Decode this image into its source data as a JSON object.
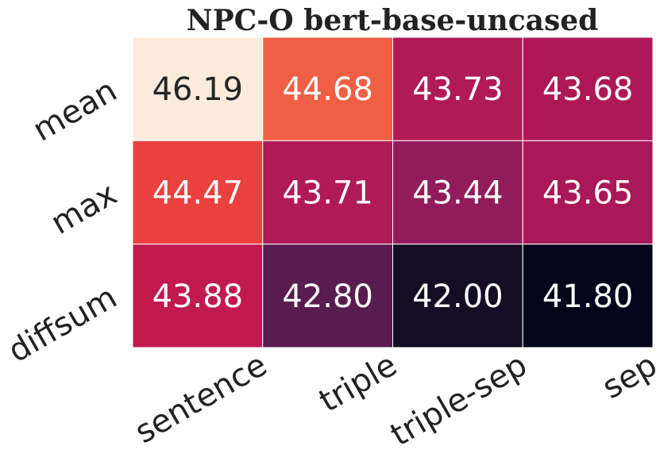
{
  "chart_data": {
    "type": "heatmap",
    "title": "NPC-O  bert-base-uncased",
    "x_categories": [
      "sentence",
      "triple",
      "triple-sep",
      "sep"
    ],
    "y_categories": [
      "mean",
      "max",
      "diffsum"
    ],
    "values": [
      [
        46.19,
        44.68,
        43.73,
        43.68
      ],
      [
        44.47,
        43.71,
        43.44,
        43.65
      ],
      [
        43.88,
        42.8,
        42.0,
        41.8
      ]
    ],
    "cell_labels": [
      [
        "46.19",
        "44.68",
        "43.73",
        "43.68"
      ],
      [
        "44.47",
        "43.71",
        "43.44",
        "43.65"
      ],
      [
        "43.88",
        "42.80",
        "42.00",
        "41.80"
      ]
    ],
    "colormap": "rocket",
    "colors": [
      [
        "#faebdd",
        "#f05f43",
        "#b01b56",
        "#ae1856"
      ],
      [
        "#e8413e",
        "#b01a56",
        "#921c5b",
        "#aa1859"
      ],
      [
        "#c11a50",
        "#581c51",
        "#140e24",
        "#03051a"
      ]
    ],
    "annotation_colors": {
      "light_bg": "#262626",
      "dark_bg": "#ffffff"
    },
    "cell_border_color": "#ffffff",
    "grid": false
  }
}
